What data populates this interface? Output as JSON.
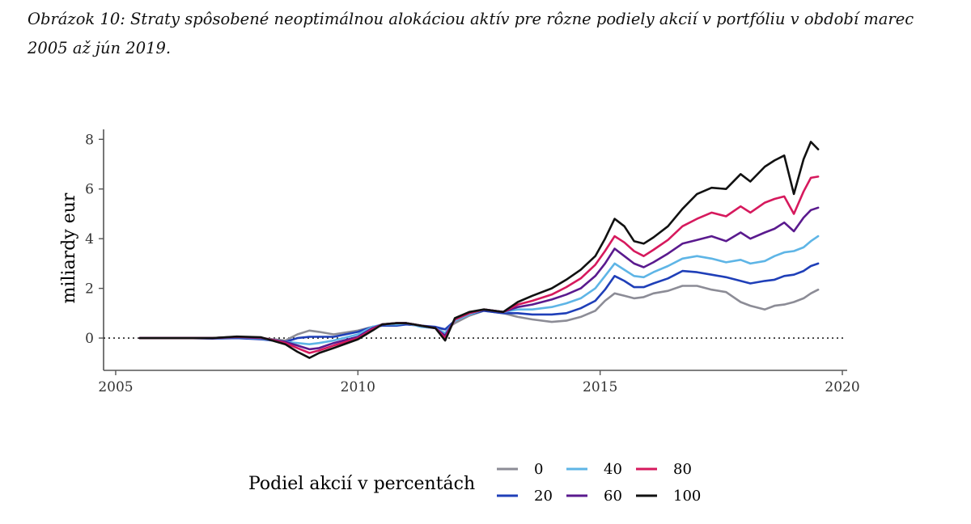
{
  "caption": "Obrázok 10: Straty spôsobené neoptimálnou alokáciou aktív pre rôzne podiely akcií v portfóliu v období marec 2005 až jún 2019.",
  "chart_data": {
    "type": "line",
    "title": "",
    "xlabel": "",
    "ylabel": "miliardy eur",
    "xlim": [
      2004.75,
      2020.1
    ],
    "ylim": [
      -1.3,
      8.4
    ],
    "x_ticks": [
      2005,
      2010,
      2015,
      2020
    ],
    "y_ticks": [
      0,
      2,
      4,
      6,
      8
    ],
    "reference_line": {
      "y": 0,
      "style": "dotted"
    },
    "legend": {
      "title": "Podiel akcií v percentách",
      "position": "bottom"
    },
    "x": [
      2005.5,
      2006.0,
      2006.5,
      2007.0,
      2007.5,
      2008.0,
      2008.5,
      2008.75,
      2009.0,
      2009.2,
      2009.5,
      2010.0,
      2010.3,
      2010.5,
      2010.8,
      2011.0,
      2011.3,
      2011.6,
      2011.8,
      2012.0,
      2012.3,
      2012.6,
      2013.0,
      2013.3,
      2013.6,
      2014.0,
      2014.3,
      2014.6,
      2014.9,
      2015.1,
      2015.3,
      2015.5,
      2015.7,
      2015.9,
      2016.1,
      2016.4,
      2016.7,
      2017.0,
      2017.3,
      2017.6,
      2017.9,
      2018.1,
      2018.4,
      2018.6,
      2018.8,
      2019.0,
      2019.2,
      2019.35,
      2019.5
    ],
    "series": [
      {
        "name": "0",
        "color": "#8c8c96",
        "values": [
          0,
          0,
          0,
          0,
          0.05,
          0,
          -0.1,
          0.15,
          0.3,
          0.25,
          0.15,
          0.3,
          0.45,
          0.5,
          0.55,
          0.6,
          0.5,
          0.4,
          0.35,
          0.6,
          0.9,
          1.1,
          1.0,
          0.85,
          0.75,
          0.65,
          0.7,
          0.85,
          1.1,
          1.5,
          1.8,
          1.7,
          1.6,
          1.65,
          1.8,
          1.9,
          2.1,
          2.1,
          1.95,
          1.85,
          1.45,
          1.3,
          1.15,
          1.3,
          1.35,
          1.45,
          1.6,
          1.8,
          1.95
        ]
      },
      {
        "name": "20",
        "color": "#1f3fb8",
        "values": [
          0,
          0,
          0,
          -0.02,
          0,
          -0.05,
          -0.15,
          0,
          0.05,
          0.05,
          0.05,
          0.25,
          0.45,
          0.5,
          0.5,
          0.55,
          0.5,
          0.45,
          0.35,
          0.7,
          0.95,
          1.1,
          1.0,
          1.0,
          0.95,
          0.95,
          1.0,
          1.2,
          1.5,
          1.95,
          2.5,
          2.3,
          2.05,
          2.05,
          2.2,
          2.4,
          2.7,
          2.65,
          2.55,
          2.45,
          2.3,
          2.2,
          2.3,
          2.35,
          2.5,
          2.55,
          2.7,
          2.9,
          3.0
        ]
      },
      {
        "name": "40",
        "color": "#5eb5e6",
        "values": [
          0,
          0,
          0,
          0,
          0.03,
          -0.02,
          -0.15,
          -0.2,
          -0.25,
          -0.2,
          -0.1,
          0.15,
          0.45,
          0.55,
          0.55,
          0.6,
          0.45,
          0.4,
          0.2,
          0.7,
          0.95,
          1.15,
          1.05,
          1.15,
          1.15,
          1.25,
          1.4,
          1.6,
          2.0,
          2.5,
          3.0,
          2.75,
          2.5,
          2.45,
          2.65,
          2.9,
          3.2,
          3.3,
          3.2,
          3.05,
          3.15,
          3.0,
          3.1,
          3.3,
          3.45,
          3.5,
          3.65,
          3.9,
          4.1
        ]
      },
      {
        "name": "60",
        "color": "#5a1a8e",
        "values": [
          0,
          0,
          0,
          0,
          0.04,
          0,
          -0.15,
          -0.3,
          -0.45,
          -0.4,
          -0.2,
          0.05,
          0.4,
          0.55,
          0.6,
          0.6,
          0.5,
          0.4,
          0.1,
          0.75,
          1.0,
          1.15,
          1.05,
          1.25,
          1.35,
          1.55,
          1.75,
          2.0,
          2.5,
          3.0,
          3.6,
          3.3,
          3.0,
          2.85,
          3.05,
          3.4,
          3.8,
          3.95,
          4.1,
          3.9,
          4.25,
          4.0,
          4.25,
          4.4,
          4.65,
          4.3,
          4.85,
          5.15,
          5.25
        ]
      },
      {
        "name": "80",
        "color": "#d6195d",
        "values": [
          0,
          0,
          0,
          0,
          0.05,
          0.02,
          -0.2,
          -0.4,
          -0.6,
          -0.5,
          -0.3,
          0,
          0.35,
          0.55,
          0.6,
          0.6,
          0.5,
          0.4,
          0.0,
          0.75,
          1.0,
          1.15,
          1.05,
          1.35,
          1.5,
          1.75,
          2.05,
          2.4,
          2.95,
          3.5,
          4.1,
          3.85,
          3.5,
          3.3,
          3.55,
          3.95,
          4.5,
          4.8,
          5.05,
          4.9,
          5.3,
          5.05,
          5.45,
          5.6,
          5.7,
          5.0,
          5.9,
          6.45,
          6.5
        ]
      },
      {
        "name": "100",
        "color": "#111111",
        "values": [
          0,
          0,
          0,
          0,
          0.06,
          0.03,
          -0.25,
          -0.55,
          -0.8,
          -0.6,
          -0.4,
          -0.05,
          0.3,
          0.55,
          0.6,
          0.6,
          0.5,
          0.4,
          -0.1,
          0.8,
          1.05,
          1.15,
          1.05,
          1.45,
          1.7,
          2.0,
          2.35,
          2.75,
          3.3,
          4.0,
          4.8,
          4.5,
          3.9,
          3.8,
          4.05,
          4.5,
          5.2,
          5.8,
          6.05,
          6.0,
          6.6,
          6.3,
          6.9,
          7.15,
          7.35,
          5.8,
          7.2,
          7.9,
          7.6
        ]
      }
    ]
  }
}
